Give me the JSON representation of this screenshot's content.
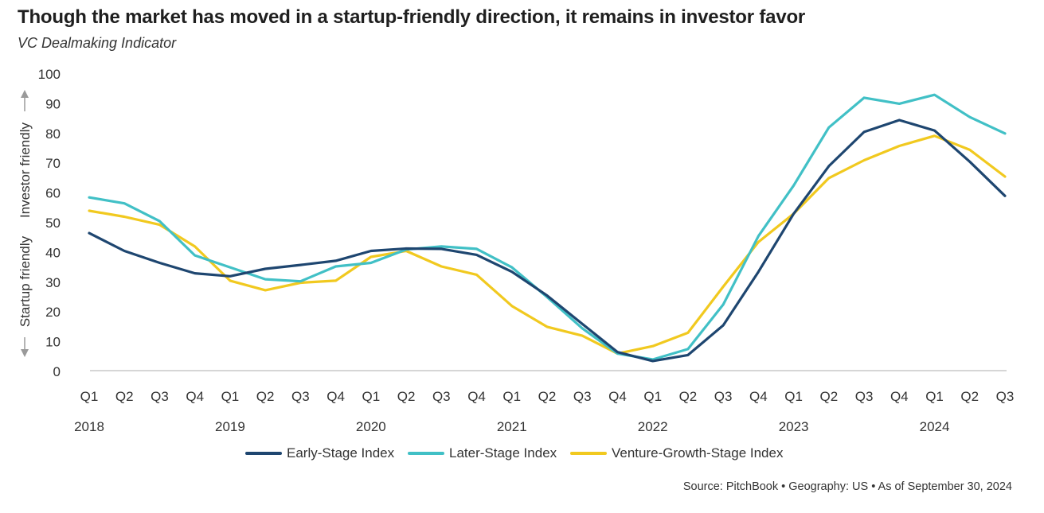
{
  "header": {
    "title": "Though the market has moved in a startup-friendly direction, it remains in investor favor",
    "subtitle": "VC Dealmaking Indicator"
  },
  "side_labels": {
    "investor": "Investor friendly",
    "startup": "Startup friendly"
  },
  "source": "Source: PitchBook  •  Geography: US  •  As of September 30, 2024",
  "colors": {
    "early": "#1e4670",
    "later": "#41c0c6",
    "growth": "#f1c91f",
    "axis": "#bdbdbd",
    "arrow": "#9a9a9a"
  },
  "chart_data": {
    "type": "line",
    "categories": [
      "Q1",
      "Q2",
      "Q3",
      "Q4",
      "Q1",
      "Q2",
      "Q3",
      "Q4",
      "Q1",
      "Q2",
      "Q3",
      "Q4",
      "Q1",
      "Q2",
      "Q3",
      "Q4",
      "Q1",
      "Q2",
      "Q3",
      "Q4",
      "Q1",
      "Q2",
      "Q3",
      "Q4",
      "Q1",
      "Q2",
      "Q3"
    ],
    "years": [
      {
        "label": "2018",
        "index": 0
      },
      {
        "label": "2019",
        "index": 4
      },
      {
        "label": "2020",
        "index": 8
      },
      {
        "label": "2021",
        "index": 12
      },
      {
        "label": "2022",
        "index": 16
      },
      {
        "label": "2023",
        "index": 20
      },
      {
        "label": "2024",
        "index": 24
      }
    ],
    "yticks": [
      0,
      10,
      20,
      30,
      40,
      50,
      60,
      70,
      80,
      90,
      100
    ],
    "ylim": [
      0,
      100
    ],
    "legend_position": "bottom",
    "grid": false,
    "series": [
      {
        "name": "Early-Stage Index",
        "key": "early",
        "values": [
          46.5,
          40.5,
          36.5,
          33.0,
          32.0,
          34.5,
          35.8,
          37.2,
          40.5,
          41.3,
          41.2,
          39.2,
          33.5,
          25.5,
          16.0,
          6.5,
          3.5,
          5.5,
          15.5,
          33.5,
          53.0,
          69.0,
          80.5,
          84.5,
          81.0,
          70.5,
          59.0
        ]
      },
      {
        "name": "Later-Stage Index",
        "key": "later",
        "values": [
          58.5,
          56.5,
          50.5,
          39.0,
          35.0,
          31.0,
          30.3,
          35.3,
          36.5,
          41.0,
          42.0,
          41.2,
          35.0,
          25.0,
          14.5,
          6.0,
          4.0,
          7.5,
          22.5,
          45.5,
          62.5,
          82.0,
          92.0,
          90.0,
          93.0,
          85.5,
          80.0
        ]
      },
      {
        "name": "Venture-Growth-Stage Index",
        "key": "growth",
        "values": [
          54.0,
          52.0,
          49.3,
          42.0,
          30.5,
          27.3,
          29.8,
          30.5,
          38.5,
          40.5,
          35.3,
          32.5,
          22.0,
          15.0,
          12.0,
          6.0,
          8.5,
          13.0,
          28.5,
          43.5,
          53.0,
          65.0,
          71.0,
          75.8,
          79.2,
          74.5,
          65.5
        ]
      }
    ]
  }
}
